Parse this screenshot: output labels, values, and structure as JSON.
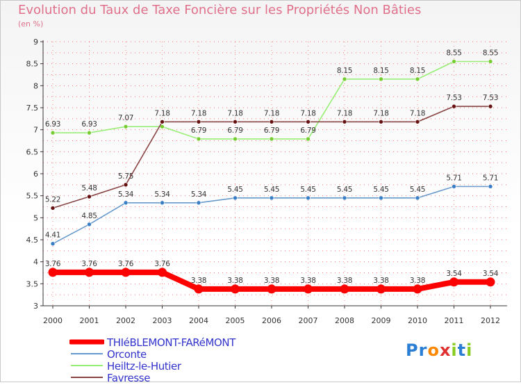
{
  "header": {
    "title": "Evolution du Taux de Taxe Foncière sur les Propriétés Non Bâties",
    "unit": "(en %)"
  },
  "logo": {
    "p": "Pr",
    "o": "o",
    "x": "x",
    "i": "i",
    "t": "t",
    "i2": "i"
  },
  "colors": {
    "title": "#e0708a",
    "legend_text": "#3333cc",
    "axis": "#333333",
    "grid": "#ff0000"
  },
  "chart_data": {
    "type": "line",
    "title": "Evolution du Taux de Taxe Foncière sur les Propriétés Non Bâties",
    "ylabel": "(en %)",
    "xlabel": "",
    "x": [
      "2000",
      "2001",
      "2002",
      "2003",
      "2004",
      "2005",
      "2006",
      "2007",
      "2008",
      "2009",
      "2010",
      "2011",
      "2012"
    ],
    "ylim": [
      3,
      9
    ],
    "yticks": [
      "3",
      "3.5",
      "4",
      "4.5",
      "5",
      "5.5",
      "6",
      "6.5",
      "7",
      "7.5",
      "8",
      "8.5",
      "9"
    ],
    "legend_position": "bottom-left",
    "series": [
      {
        "name": "THIéBLEMONT-FARéMONT",
        "color": "#ff0000",
        "bold": true,
        "values": [
          3.76,
          3.76,
          3.76,
          3.76,
          3.38,
          3.38,
          3.38,
          3.38,
          3.38,
          3.38,
          3.38,
          3.54,
          3.54
        ],
        "labels": [
          "3.76",
          "3.76",
          "3.76",
          "3.76",
          "3.38",
          "3.38",
          "3.38",
          "3.38",
          "3.38",
          "3.38",
          "3.38",
          "3.54",
          "3.54"
        ]
      },
      {
        "name": "Orconte",
        "color": "#6699cc",
        "marker": "#3a7ec6",
        "values": [
          4.41,
          4.85,
          5.34,
          5.34,
          5.34,
          5.45,
          5.45,
          5.45,
          5.45,
          5.45,
          5.45,
          5.71,
          5.71
        ],
        "labels": [
          "4.41",
          "4.85",
          "5.34",
          "5.34",
          "5.34",
          "5.45",
          "5.45",
          "5.45",
          "5.45",
          "5.45",
          "5.45",
          "5.71",
          "5.71"
        ]
      },
      {
        "name": "Heiltz-le-Hutier",
        "color": "#99ee77",
        "marker": "#77cc33",
        "values": [
          6.93,
          6.93,
          7.07,
          7.07,
          6.79,
          6.79,
          6.79,
          6.79,
          8.15,
          8.15,
          8.15,
          8.55,
          8.55
        ],
        "labels": [
          "6.93",
          "6.93",
          "7.07",
          "",
          "6.79",
          "6.79",
          "6.79",
          "6.79",
          "8.15",
          "8.15",
          "8.15",
          "8.55",
          "8.55"
        ]
      },
      {
        "name": "Favresse",
        "color": "#884444",
        "marker": "#661111",
        "values": [
          5.22,
          5.48,
          5.75,
          7.18,
          7.18,
          7.18,
          7.18,
          7.18,
          7.18,
          7.18,
          7.18,
          7.53,
          7.53
        ],
        "labels": [
          "5.22",
          "5.48",
          "5.75",
          "7.18",
          "7.18",
          "7.18",
          "7.18",
          "7.18",
          "7.18",
          "7.18",
          "7.18",
          "7.53",
          "7.53"
        ]
      }
    ]
  }
}
